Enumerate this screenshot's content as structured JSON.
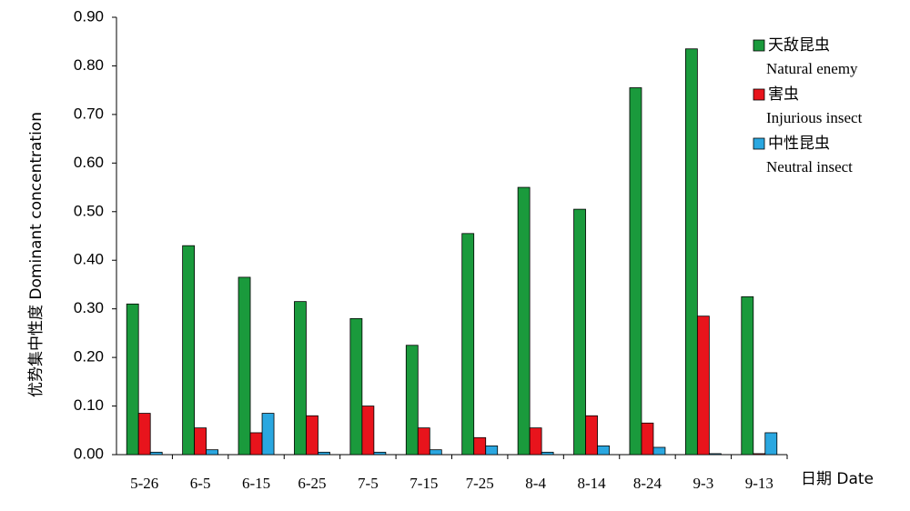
{
  "chart_data": {
    "type": "bar",
    "categories": [
      "5-26",
      "6-5",
      "6-15",
      "6-25",
      "7-5",
      "7-15",
      "7-25",
      "8-4",
      "8-14",
      "8-24",
      "9-3",
      "9-13"
    ],
    "series": [
      {
        "name": "天敌昆虫",
        "name_en": "Natural enemy",
        "color": "#1a9a3c",
        "values": [
          0.31,
          0.43,
          0.365,
          0.315,
          0.28,
          0.225,
          0.455,
          0.55,
          0.505,
          0.755,
          0.835,
          0.325
        ]
      },
      {
        "name": "害虫",
        "name_en": "Injurious insect",
        "color": "#e8141c",
        "values": [
          0.085,
          0.055,
          0.045,
          0.08,
          0.1,
          0.055,
          0.035,
          0.055,
          0.08,
          0.065,
          0.285,
          0.002
        ]
      },
      {
        "name": "中性昆虫",
        "name_en": "Neutral insect",
        "color": "#2aa7e0",
        "values": [
          0.005,
          0.01,
          0.085,
          0.005,
          0.005,
          0.01,
          0.018,
          0.005,
          0.018,
          0.015,
          0.002,
          0.045
        ]
      }
    ],
    "ylabel": "优势集中性度 Dominant concentration",
    "xlabel": "日期 Date",
    "ylim": [
      0,
      0.9
    ],
    "yticks": [
      {
        "value": 0,
        "label": "0.00"
      },
      {
        "value": 0.1,
        "label": "0.10"
      },
      {
        "value": 0.2,
        "label": "0.20"
      },
      {
        "value": 0.3,
        "label": "0.30"
      },
      {
        "value": 0.4,
        "label": "0.40"
      },
      {
        "value": 0.5,
        "label": "0.50"
      },
      {
        "value": 0.6,
        "label": "0.60"
      },
      {
        "value": 0.7,
        "label": "0.70"
      },
      {
        "value": 0.8,
        "label": "0.80"
      },
      {
        "value": 0.9,
        "label": "0.90"
      }
    ],
    "grid": false,
    "legend": "upper right"
  }
}
